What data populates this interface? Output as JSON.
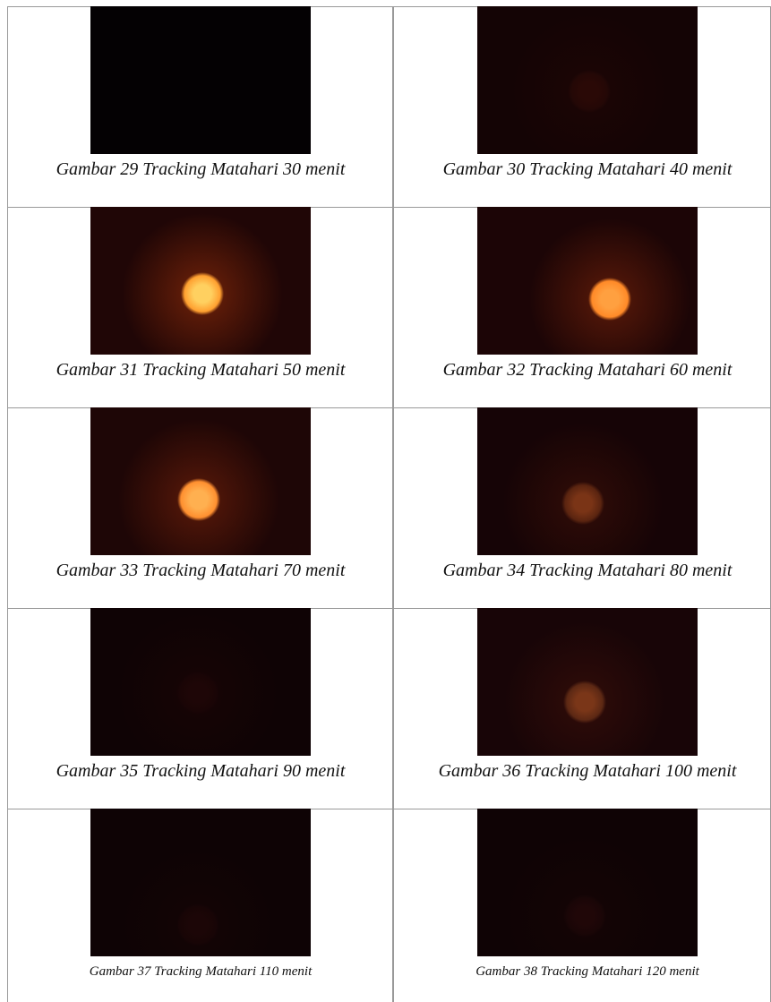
{
  "table": {
    "rows": [
      [
        "Gambar 29 Tracking Matahari 30 menit",
        "Gambar 30 Tracking Matahari 40 menit"
      ],
      [
        "Gambar 31 Tracking Matahari 50 menit",
        "Gambar 32 Tracking Matahari 60 menit"
      ],
      [
        "Gambar 33 Tracking Matahari 70 menit",
        "Gambar 34 Tracking Matahari 80 menit"
      ],
      [
        "Gambar 35 Tracking Matahari 90 menit",
        "Gambar 36 Tracking Matahari 100 menit"
      ],
      [
        "Gambar 37 Tracking Matahari 110 menit",
        "Gambar 38 Tracking Matahari 120 menit"
      ]
    ]
  }
}
